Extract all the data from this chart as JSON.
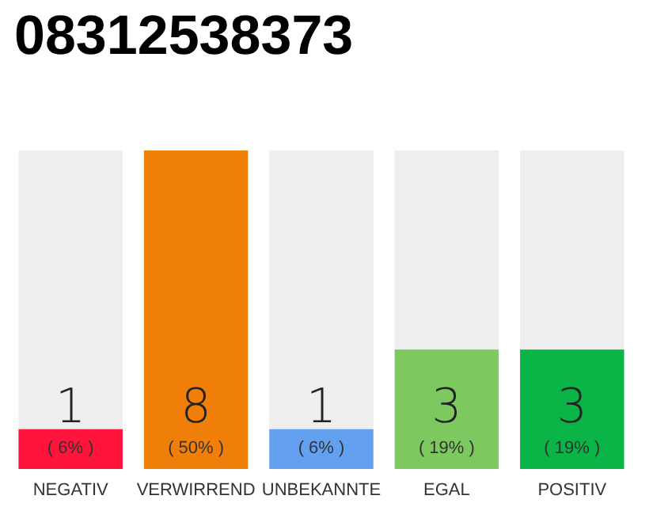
{
  "chart_data": {
    "type": "bar",
    "title": "08312538373",
    "categories": [
      "NEGATIV",
      "VERWIRREND",
      "UNBEKANNTE",
      "EGAL",
      "POSITIV"
    ],
    "values": [
      1,
      8,
      1,
      3,
      3
    ],
    "colors": [
      "#ff143c",
      "#f07f0a",
      "#64a0f0",
      "#7dc85f",
      "#0ab446"
    ],
    "data_labels": true,
    "annotations": [
      "( 6% )",
      "( 50% )",
      "( 6% )",
      "( 19% )",
      "( 19% )"
    ],
    "grid": false
  }
}
